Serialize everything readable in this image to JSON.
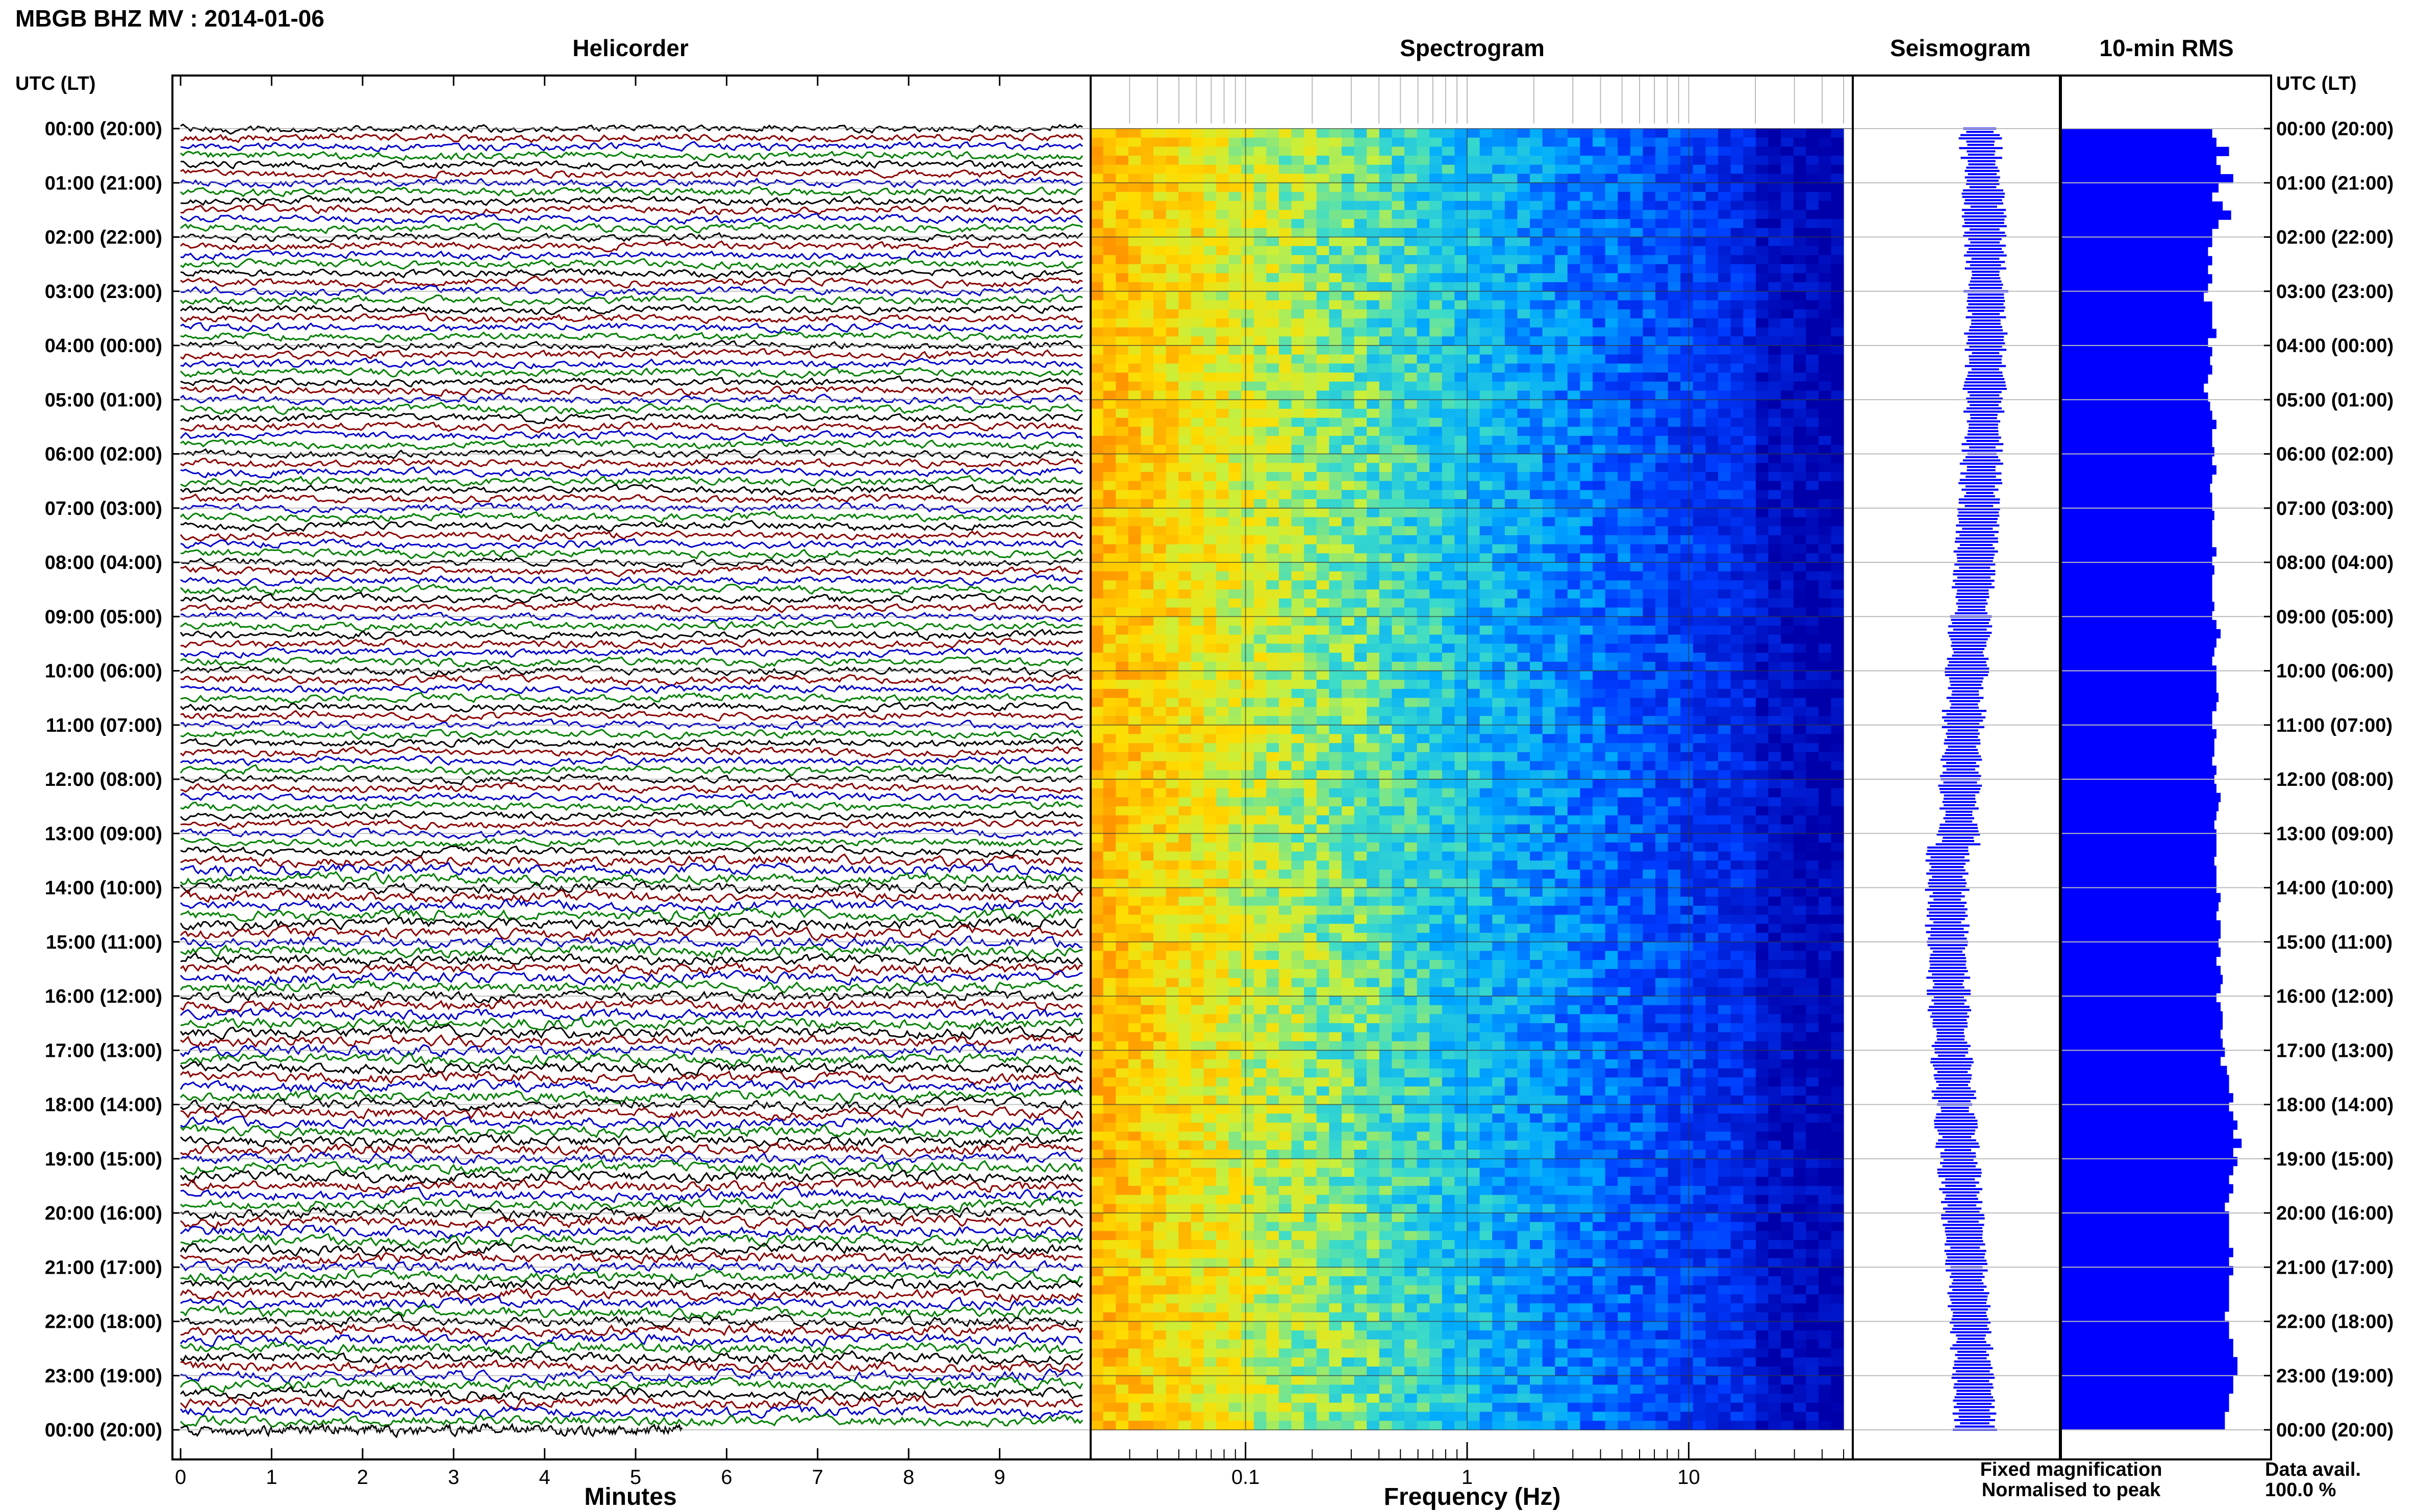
{
  "title": "MBGB BHZ MV : 2014-01-06",
  "panels": {
    "helicorder": "Helicorder",
    "spectrogram": "Spectrogram",
    "seismogram": "Seismogram",
    "rms": "10-min RMS"
  },
  "time_axis_header": "UTC (LT)",
  "time_labels": [
    "00:00 (20:00)",
    "01:00 (21:00)",
    "02:00 (22:00)",
    "03:00 (23:00)",
    "04:00 (00:00)",
    "05:00 (01:00)",
    "06:00 (02:00)",
    "07:00 (03:00)",
    "08:00 (04:00)",
    "09:00 (05:00)",
    "10:00 (06:00)",
    "11:00 (07:00)",
    "12:00 (08:00)",
    "13:00 (09:00)",
    "14:00 (10:00)",
    "15:00 (11:00)",
    "16:00 (12:00)",
    "17:00 (13:00)",
    "18:00 (14:00)",
    "19:00 (15:00)",
    "20:00 (16:00)",
    "21:00 (17:00)",
    "22:00 (18:00)",
    "23:00 (19:00)",
    "00:00 (20:00)"
  ],
  "legend": {
    "fixed": "Fixed magnification",
    "normalised": "Normalised to peak",
    "fixed_color": "#0000ff",
    "normalised_color": "#ff0000"
  },
  "data_avail": {
    "label": "Data avail.",
    "value": "100.0 %"
  },
  "chart_data": [
    {
      "type": "line",
      "name": "helicorder",
      "title": "Helicorder",
      "xlabel": "Minutes",
      "x_ticks": [
        "0",
        "1",
        "2",
        "3",
        "4",
        "5",
        "6",
        "7",
        "8",
        "9"
      ],
      "xlim": [
        0,
        10
      ],
      "rows_per_hour": 6,
      "trace_colors": [
        "#000000",
        "#8b0000",
        "#0000cd",
        "#008000"
      ]
    },
    {
      "type": "heatmap",
      "name": "spectrogram",
      "title": "Spectrogram",
      "xlabel": "Frequency (Hz)",
      "x_ticks": [
        "0.1",
        "1",
        "10"
      ],
      "x_scale": "log",
      "xlim": [
        0.02,
        50
      ]
    },
    {
      "type": "line",
      "name": "seismogram",
      "title": "Seismogram",
      "color": "#0000ff"
    },
    {
      "type": "bar",
      "name": "rms",
      "title": "10-min RMS",
      "orientation": "horizontal",
      "color": "#0000ff",
      "values": [
        0.72,
        0.74,
        0.8,
        0.74,
        0.76,
        0.82,
        0.75,
        0.72,
        0.77,
        0.81,
        0.75,
        0.72,
        0.72,
        0.7,
        0.72,
        0.7,
        0.72,
        0.7,
        0.68,
        0.72,
        0.72,
        0.72,
        0.74,
        0.7,
        0.72,
        0.71,
        0.72,
        0.7,
        0.68,
        0.7,
        0.71,
        0.72,
        0.74,
        0.72,
        0.72,
        0.73,
        0.72,
        0.74,
        0.72,
        0.71,
        0.72,
        0.72,
        0.73,
        0.72,
        0.72,
        0.72,
        0.74,
        0.72,
        0.73,
        0.72,
        0.72,
        0.72,
        0.73,
        0.72,
        0.74,
        0.76,
        0.74,
        0.73,
        0.72,
        0.74,
        0.74,
        0.74,
        0.75,
        0.74,
        0.72,
        0.72,
        0.74,
        0.73,
        0.73,
        0.72,
        0.74,
        0.73,
        0.74,
        0.76,
        0.75,
        0.74,
        0.73,
        0.74,
        0.74,
        0.74,
        0.73,
        0.74,
        0.74,
        0.74,
        0.76,
        0.75,
        0.74,
        0.76,
        0.76,
        0.75,
        0.76,
        0.74,
        0.76,
        0.77,
        0.76,
        0.74,
        0.76,
        0.77,
        0.77,
        0.76,
        0.77,
        0.78,
        0.76,
        0.79,
        0.8,
        0.8,
        0.82,
        0.8,
        0.82,
        0.84,
        0.82,
        0.86,
        0.82,
        0.84,
        0.82,
        0.8,
        0.82,
        0.8,
        0.78,
        0.8,
        0.8,
        0.8,
        0.8,
        0.82,
        0.8,
        0.82,
        0.8,
        0.8,
        0.8,
        0.8,
        0.78,
        0.8,
        0.8,
        0.82,
        0.82,
        0.84,
        0.84,
        0.82,
        0.82,
        0.8,
        0.8,
        0.78,
        0.78
      ]
    }
  ]
}
